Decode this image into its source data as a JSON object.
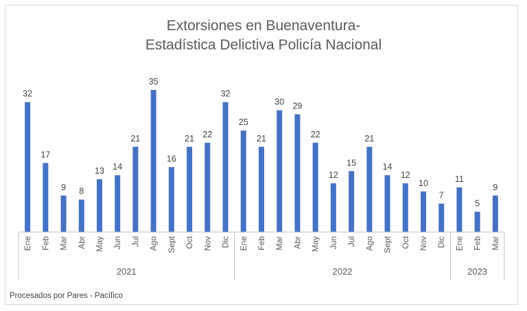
{
  "chart_data": {
    "type": "bar",
    "title": [
      "Extorsiones en Buenaventura-",
      "Estadística Delictiva Policía Nacional"
    ],
    "categories": [
      "Ene",
      "Feb",
      "Mar",
      "Abr",
      "May",
      "Jun",
      "Jul",
      "Ago",
      "Sept",
      "Oct",
      "Nov",
      "Dic",
      "Ene",
      "Feb",
      "Mar",
      "Abr",
      "May",
      "Jun",
      "Jul",
      "Ago",
      "Sept",
      "Oct",
      "Nov",
      "Dic",
      "Ene",
      "Feb",
      "Mar"
    ],
    "values": [
      32,
      17,
      9,
      8,
      13,
      14,
      21,
      35,
      16,
      21,
      22,
      32,
      25,
      21,
      30,
      29,
      22,
      12,
      15,
      21,
      14,
      12,
      10,
      7,
      11,
      5,
      9
    ],
    "groups": [
      {
        "label": "2021",
        "count": 12
      },
      {
        "label": "2022",
        "count": 12
      },
      {
        "label": "2023",
        "count": 3
      }
    ],
    "bar_color": "#4472c4",
    "ylim": [
      0,
      35
    ]
  },
  "footer": {
    "source": "Procesados por Pares - Pacífico"
  }
}
